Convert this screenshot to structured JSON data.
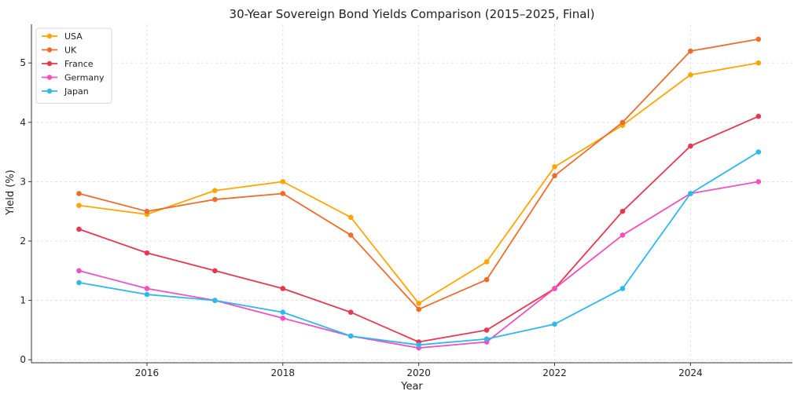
{
  "chart_data": {
    "type": "line",
    "title": "30-Year Sovereign Bond Yields Comparison (2015–2025, Final)",
    "xlabel": "Year",
    "ylabel": "Yield (%)",
    "x": [
      2015,
      2016,
      2017,
      2018,
      2019,
      2020,
      2021,
      2022,
      2023,
      2024,
      2025
    ],
    "xlim": [
      2014.3,
      2025.5
    ],
    "ylim": [
      -0.05,
      5.65
    ],
    "x_ticks": [
      2016,
      2018,
      2020,
      2022,
      2024
    ],
    "y_ticks": [
      0,
      1,
      2,
      3,
      4,
      5
    ],
    "grid": true,
    "legend_position": "top-left",
    "series": [
      {
        "name": "USA",
        "color": "#FFA500",
        "values": [
          2.6,
          2.45,
          2.85,
          3.0,
          2.4,
          0.95,
          1.65,
          3.25,
          3.95,
          4.8,
          5.0
        ]
      },
      {
        "name": "UK",
        "color": "#EE6C2E",
        "values": [
          2.8,
          2.5,
          2.7,
          2.8,
          2.1,
          0.85,
          1.35,
          3.1,
          4.0,
          5.2,
          5.4
        ]
      },
      {
        "name": "France",
        "color": "#E8384F",
        "values": [
          2.2,
          1.8,
          1.5,
          1.2,
          0.8,
          0.3,
          0.5,
          1.2,
          2.5,
          3.6,
          4.1
        ]
      },
      {
        "name": "Germany",
        "color": "#F050C0",
        "values": [
          1.5,
          1.2,
          1.0,
          0.7,
          0.4,
          0.2,
          0.3,
          1.2,
          2.1,
          2.8,
          3.0
        ]
      },
      {
        "name": "Japan",
        "color": "#2DB8EE",
        "values": [
          1.3,
          1.1,
          1.0,
          0.8,
          0.4,
          0.25,
          0.35,
          0.6,
          1.2,
          2.8,
          3.5
        ]
      }
    ]
  }
}
